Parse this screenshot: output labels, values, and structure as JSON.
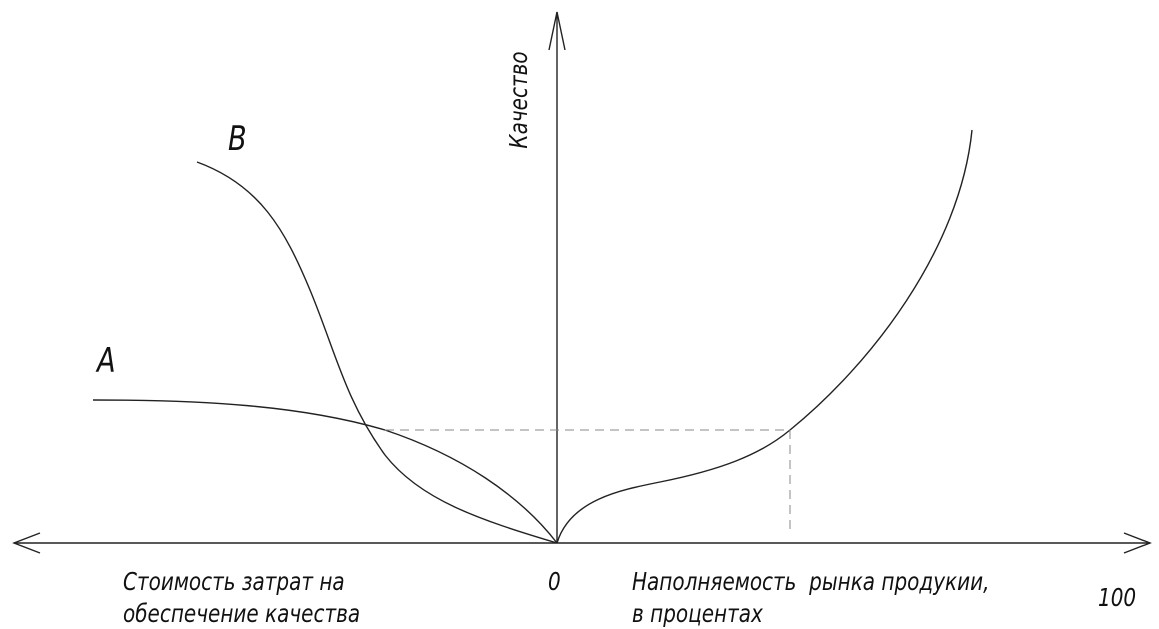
{
  "axis_y_label": "Качество",
  "curve_b_label": "B",
  "curve_a_label": "A",
  "left_caption": [
    "Стоимость затрат на",
    "обеспечение качества"
  ],
  "origin_label": "0",
  "right_caption": [
    "Наполняемость  рынка продукии,",
    "в процентах"
  ],
  "right_end_label": "100"
}
